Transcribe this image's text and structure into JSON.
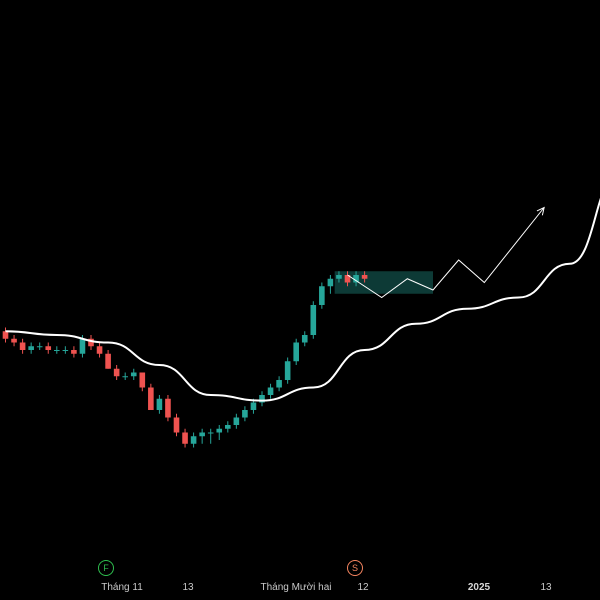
{
  "colors": {
    "background": "#000000",
    "up": "#26a69a",
    "down": "#ef5350",
    "ma_line": "#ffffff",
    "projection": "#ffffff",
    "box_fill": "rgba(38,166,154,0.35)",
    "badge_f": "#2ebd4e",
    "badge_s": "#f4845f"
  },
  "time_axis": {
    "labels": [
      "Tháng 11",
      "13",
      "Tháng Mười hai",
      "12",
      "2025",
      "13"
    ],
    "bold_label": "2025",
    "badges": [
      {
        "text": "F",
        "icon": "earnings-f-icon",
        "color": "#2ebd4e"
      },
      {
        "text": "S",
        "icon": "split-s-icon",
        "color": "#f4845f"
      }
    ]
  },
  "chart_data": {
    "type": "candlestick",
    "price_range": [
      0,
      100
    ],
    "candles": [
      [
        57,
        58,
        54,
        55
      ],
      [
        55,
        56,
        53,
        54
      ],
      [
        54,
        55,
        51,
        52
      ],
      [
        52,
        54,
        51,
        53
      ],
      [
        53,
        54,
        52,
        53
      ],
      [
        53,
        54,
        51,
        52
      ],
      [
        52,
        53,
        51,
        52
      ],
      [
        52,
        53,
        51,
        52
      ],
      [
        52,
        53,
        50,
        51
      ],
      [
        51,
        56,
        50,
        55
      ],
      [
        55,
        56,
        52,
        53
      ],
      [
        53,
        54,
        50,
        51
      ],
      [
        51,
        52,
        47,
        47
      ],
      [
        47,
        48,
        44,
        45
      ],
      [
        45,
        46,
        44,
        45
      ],
      [
        45,
        47,
        44,
        46
      ],
      [
        46,
        46,
        41,
        42
      ],
      [
        42,
        43,
        36,
        36
      ],
      [
        36,
        40,
        35,
        39
      ],
      [
        39,
        40,
        33,
        34
      ],
      [
        34,
        35,
        29,
        30
      ],
      [
        30,
        31,
        26,
        27
      ],
      [
        27,
        30,
        26,
        29
      ],
      [
        29,
        31,
        27,
        30
      ],
      [
        30,
        31,
        27,
        30
      ],
      [
        30,
        32,
        28,
        31
      ],
      [
        31,
        33,
        30,
        32
      ],
      [
        32,
        35,
        31,
        34
      ],
      [
        34,
        37,
        33,
        36
      ],
      [
        36,
        39,
        35,
        38
      ],
      [
        38,
        41,
        37,
        40
      ],
      [
        40,
        43,
        39,
        42
      ],
      [
        42,
        45,
        41,
        44
      ],
      [
        44,
        50,
        43,
        49
      ],
      [
        49,
        55,
        48,
        54
      ],
      [
        54,
        57,
        53,
        56
      ],
      [
        56,
        65,
        55,
        64
      ],
      [
        64,
        70,
        63,
        69
      ],
      [
        69,
        72,
        67,
        71
      ],
      [
        71,
        73,
        70,
        72
      ],
      [
        72,
        73,
        69,
        70
      ],
      [
        70,
        73,
        69,
        72
      ],
      [
        72,
        73,
        70,
        71
      ]
    ],
    "moving_average": [
      [
        0,
        57
      ],
      [
        6,
        56
      ],
      [
        12,
        54
      ],
      [
        18,
        48
      ],
      [
        24,
        40
      ],
      [
        30,
        38.5
      ],
      [
        36,
        42
      ],
      [
        42,
        52
      ],
      [
        48,
        59
      ],
      [
        54,
        63
      ],
      [
        60,
        66
      ],
      [
        66,
        75
      ],
      [
        72,
        100
      ]
    ],
    "projection_path": [
      [
        40,
        72
      ],
      [
        44,
        66
      ],
      [
        47,
        71
      ],
      [
        50,
        68
      ],
      [
        53,
        76
      ],
      [
        56,
        70
      ],
      [
        63,
        90
      ]
    ],
    "highlight_box": {
      "x_from": 38.5,
      "x_to": 50,
      "y_from": 73,
      "y_to": 67
    }
  }
}
